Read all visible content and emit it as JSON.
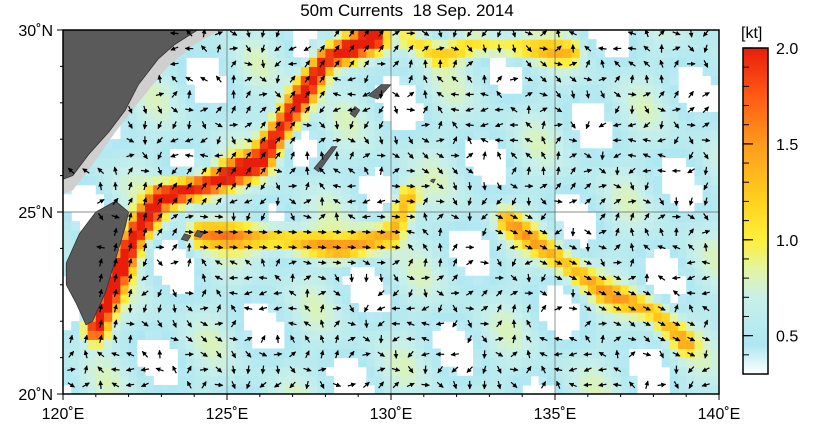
{
  "title": "50m Currents  18 Sep. 2014",
  "map": {
    "lon_range": [
      120,
      140
    ],
    "lat_range": [
      20,
      30
    ],
    "lon_ticks": [
      {
        "value": 120,
        "label": "120˚E"
      },
      {
        "value": 125,
        "label": "125˚E"
      },
      {
        "value": 130,
        "label": "130˚E"
      },
      {
        "value": 135,
        "label": "135˚E"
      },
      {
        "value": 140,
        "label": "140˚E"
      }
    ],
    "lat_ticks": [
      {
        "value": 20,
        "label": "20˚N"
      },
      {
        "value": 25,
        "label": "25˚N"
      },
      {
        "value": 30,
        "label": "30˚N"
      }
    ],
    "land_color": "#5a5a5a",
    "shelf_color": "#cfcfcf",
    "arrow_color": "#000000",
    "grid": true
  },
  "colorbar": {
    "unit": "[kt]",
    "min": 0.3,
    "max": 2.0,
    "tick_labels": [
      {
        "value": 0.5,
        "label": "0.5"
      },
      {
        "value": 1.0,
        "label": "1.0"
      },
      {
        "value": 1.5,
        "label": "1.5"
      },
      {
        "value": 2.0,
        "label": "2.0"
      }
    ],
    "stops": [
      {
        "value": 0.3,
        "color": "#ffffff"
      },
      {
        "value": 0.45,
        "color": "#aee7f2"
      },
      {
        "value": 0.7,
        "color": "#c9f0ea"
      },
      {
        "value": 0.85,
        "color": "#e3f5a0"
      },
      {
        "value": 1.0,
        "color": "#ffef3a"
      },
      {
        "value": 1.2,
        "color": "#ffd21e"
      },
      {
        "value": 1.5,
        "color": "#ff9a1c"
      },
      {
        "value": 1.75,
        "color": "#ff5a14"
      },
      {
        "value": 2.0,
        "color": "#e81e0a"
      }
    ]
  }
}
